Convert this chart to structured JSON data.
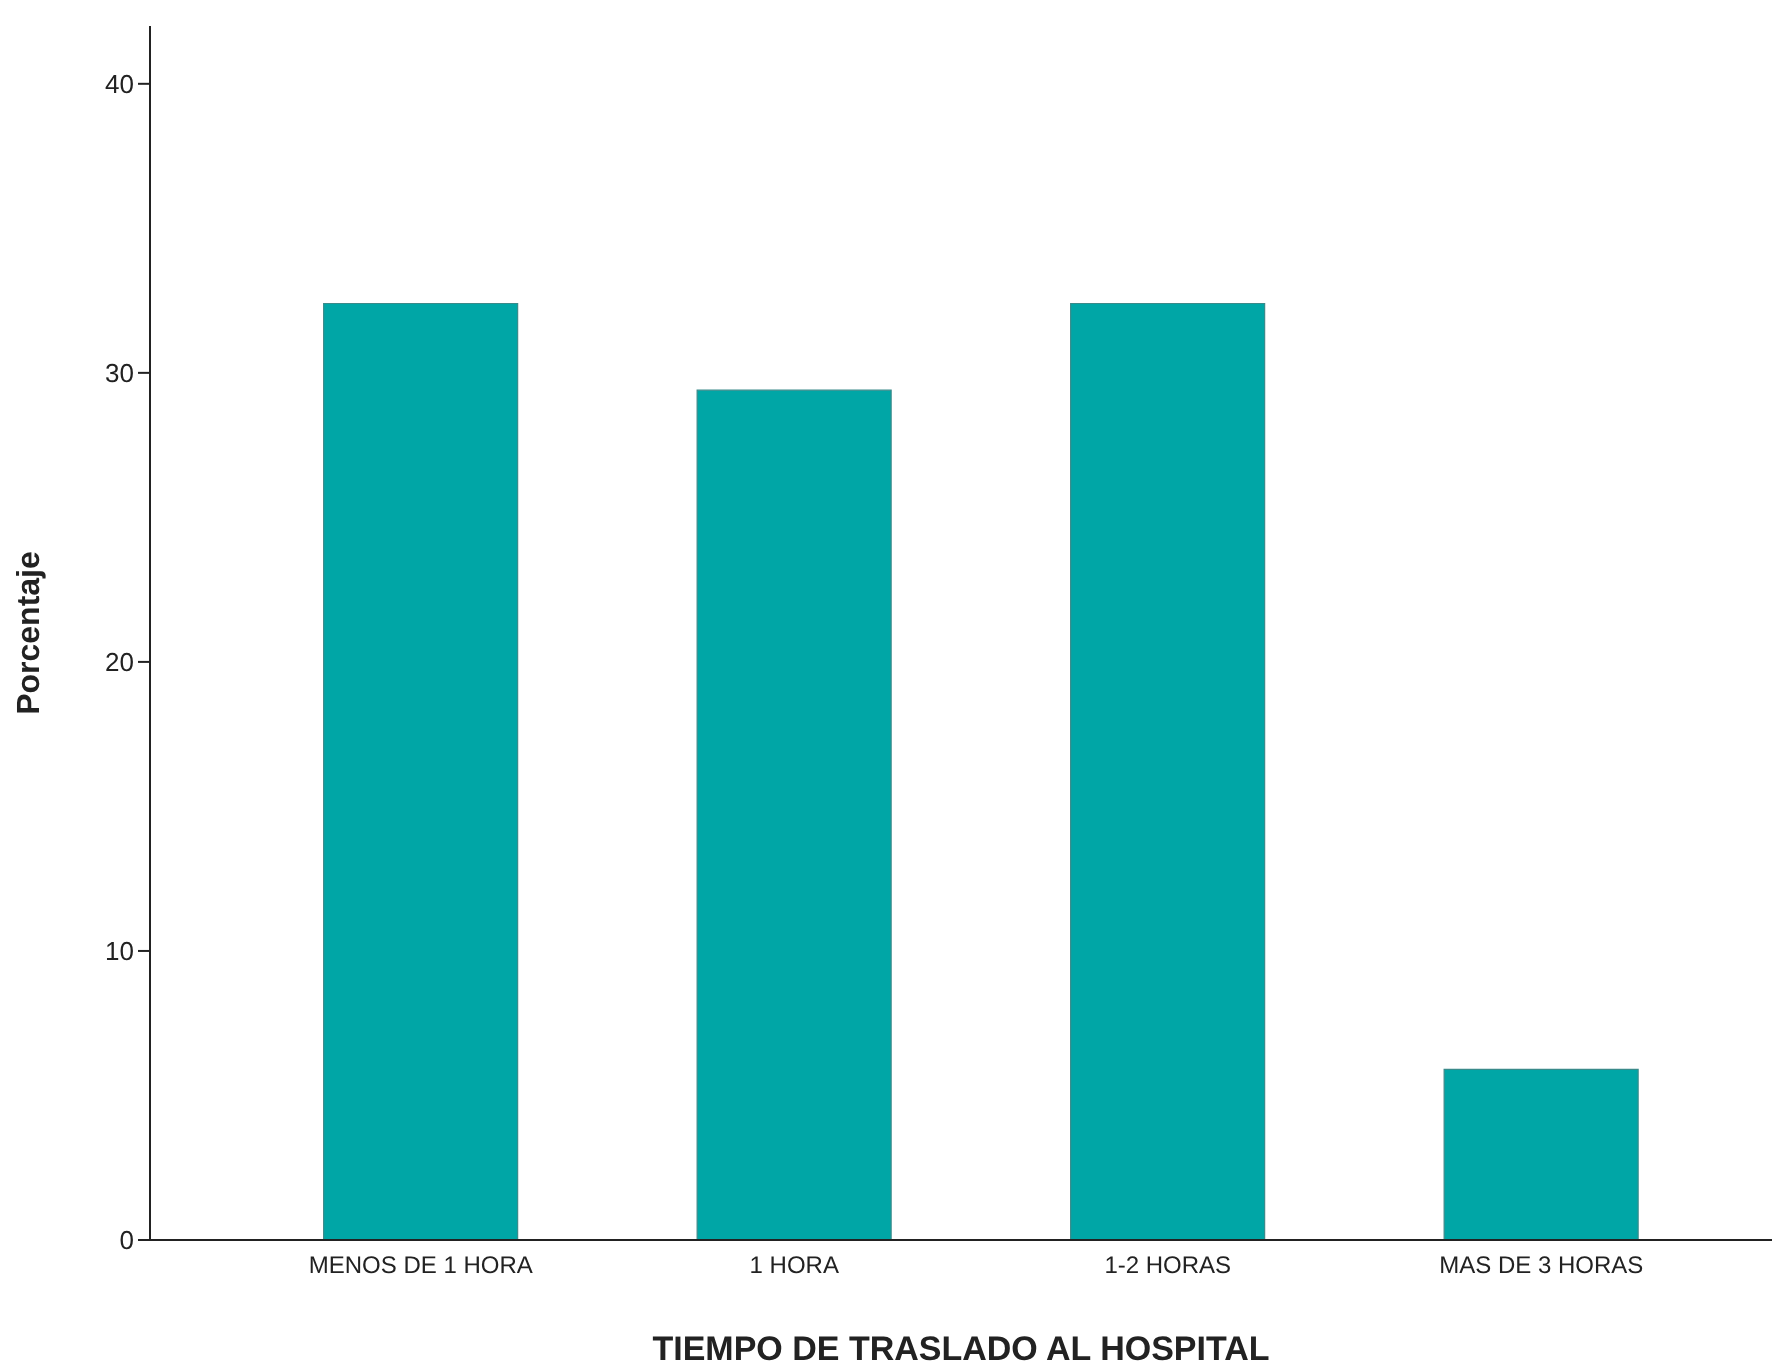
{
  "chart_data": {
    "type": "bar",
    "xlabel": "TIEMPO DE TRASLADO AL HOSPITAL",
    "ylabel": "Porcentaje",
    "categories": [
      "MENOS DE 1 HORA",
      "1 HORA",
      "1-2 HORAS",
      "MAS DE 3 HORAS"
    ],
    "values": [
      32.4,
      29.4,
      32.4,
      5.9
    ],
    "color": "#00a6a6",
    "ylim": [
      0,
      42
    ],
    "yticks": [
      0,
      10,
      20,
      30,
      40
    ],
    "grid": false,
    "legend": false
  }
}
